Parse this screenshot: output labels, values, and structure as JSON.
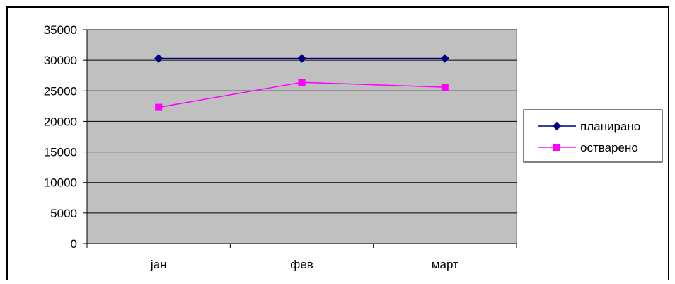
{
  "chart_data": {
    "type": "line",
    "title": "",
    "categories": [
      "јан",
      "фев",
      "март"
    ],
    "series": [
      {
        "name": "планирано",
        "values": [
          30300,
          30300,
          30300
        ],
        "color": "#000080",
        "marker": "diamond"
      },
      {
        "name": "остварено",
        "values": [
          22300,
          26400,
          25600
        ],
        "color": "#ff00ff",
        "marker": "square"
      }
    ],
    "ylim": [
      0,
      35000
    ],
    "yticks": [
      "0",
      "5000",
      "10000",
      "15000",
      "20000",
      "25000",
      "30000",
      "35000"
    ],
    "grid": true,
    "plot_background": "#c0c0c0",
    "legend_position": "right"
  }
}
